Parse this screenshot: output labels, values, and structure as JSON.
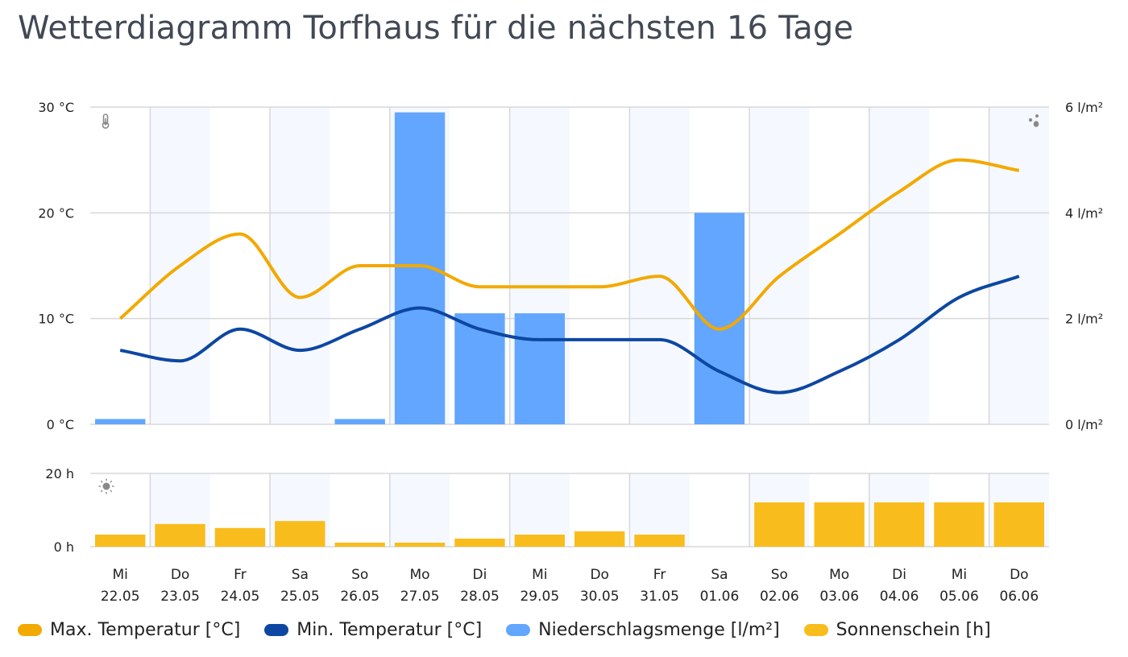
{
  "title": "Wetterdiagramm Torfhaus für die nächsten 16 Tage",
  "colors": {
    "max_temp": "#F2A900",
    "min_temp": "#0D47A1",
    "precip": "#62A6FF",
    "sunshine": "#F8BC1C",
    "grid": "#D6D7DA",
    "band": "#F5F9FF",
    "icon": "#8A8A8A"
  },
  "icons": {
    "temperature": "thermometer-icon",
    "precipitation": "raindrops-icon",
    "sunshine": "sun-icon"
  },
  "chart_data": [
    {
      "type": "line",
      "title": "Wetterdiagramm Torfhaus für die nächsten 16 Tage",
      "categories_day": [
        "Mi",
        "Do",
        "Fr",
        "Sa",
        "So",
        "Mo",
        "Di",
        "Mi",
        "Do",
        "Fr",
        "Sa",
        "So",
        "Mo",
        "Di",
        "Mi",
        "Do"
      ],
      "categories_date": [
        "22.05",
        "23.05",
        "24.05",
        "25.05",
        "26.05",
        "27.05",
        "28.05",
        "29.05",
        "30.05",
        "31.05",
        "01.06",
        "02.06",
        "03.06",
        "04.06",
        "05.06",
        "06.06"
      ],
      "y_left": {
        "label": "Temperatur",
        "ylim": [
          0,
          30
        ],
        "ticks": [
          "0 °C",
          "10 °C",
          "20 °C",
          "30 °C"
        ],
        "tick_values": [
          0,
          10,
          20,
          30
        ]
      },
      "y_right": {
        "label": "Niederschlagsmenge",
        "ylim": [
          0,
          6
        ],
        "ticks": [
          "0 l/m²",
          "2 l/m²",
          "4 l/m²",
          "6 l/m²"
        ],
        "tick_values": [
          0,
          2,
          4,
          6
        ]
      },
      "grid": true,
      "series": [
        {
          "name": "Max. Temperatur [°C]",
          "type": "line",
          "axis": "left",
          "values": [
            10,
            15,
            18,
            12,
            15,
            15,
            13,
            13,
            13,
            14,
            9,
            14,
            18,
            22,
            25,
            24
          ]
        },
        {
          "name": "Min. Temperatur [°C]",
          "type": "line",
          "axis": "left",
          "values": [
            7,
            6,
            9,
            7,
            9,
            11,
            9,
            8,
            8,
            8,
            5,
            3,
            5,
            8,
            12,
            14
          ]
        },
        {
          "name": "Niederschlagsmenge [l/m²]",
          "type": "bar",
          "axis": "right",
          "values": [
            0.1,
            0,
            0,
            0,
            0.1,
            5.9,
            2.1,
            2.1,
            0,
            0,
            4.0,
            0,
            0,
            0,
            0,
            0
          ]
        }
      ]
    },
    {
      "type": "bar",
      "title": "",
      "ylim": [
        0,
        20
      ],
      "ticks": [
        "0 h",
        "20 h"
      ],
      "tick_values": [
        0,
        20
      ],
      "grid": true,
      "series": [
        {
          "name": "Sonnenschein [h]",
          "values": [
            3.3,
            6.2,
            5.1,
            7.0,
            1.1,
            1.1,
            2.2,
            3.3,
            4.2,
            3.3,
            0,
            12.1,
            12.1,
            12.1,
            12.1,
            12.1
          ]
        }
      ]
    }
  ],
  "legend": {
    "position": "bottom-left",
    "items": [
      {
        "label": "Max.  Temperatur [°C]",
        "color": "#F2A900"
      },
      {
        "label": "Min.  Temperatur [°C]",
        "color": "#0D47A1"
      },
      {
        "label": "Niederschlagsmenge [l/m²]",
        "color": "#62A6FF"
      },
      {
        "label": "Sonnenschein [h]",
        "color": "#F8BC1C"
      }
    ]
  }
}
